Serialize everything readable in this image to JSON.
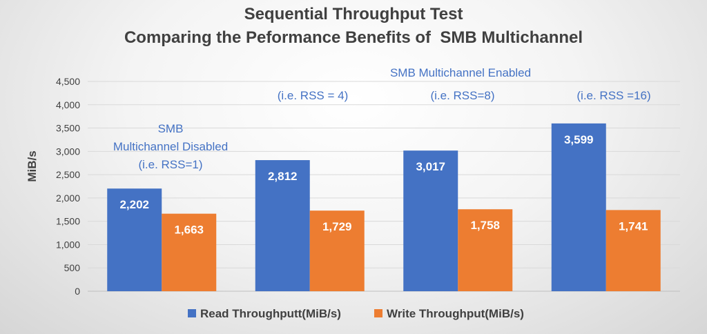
{
  "chart_data": {
    "type": "bar",
    "title": "Sequential Throughput Test",
    "subtitle": "Comparing the Peformance Benefits of  SMB Multichannel",
    "xlabel": "",
    "ylabel": "MiB/s",
    "ylim": [
      0,
      4500
    ],
    "yticks": [
      "0",
      "500",
      "1,000",
      "1,500",
      "2,000",
      "2,500",
      "3,000",
      "3,500",
      "4,000",
      "4,500"
    ],
    "categories": [
      "",
      "",
      "",
      ""
    ],
    "series": [
      {
        "name": "Read Throughputt(MiB/s)",
        "values": [
          2202,
          2812,
          3017,
          3599
        ],
        "labels": [
          "2,202",
          "2,812",
          "3,017",
          "3,599"
        ],
        "color": "#4472c4"
      },
      {
        "name": "Write Throughput(MiB/s)",
        "values": [
          1663,
          1729,
          1758,
          1741
        ],
        "labels": [
          "1,663",
          "1,729",
          "1,758",
          "1,741"
        ],
        "color": "#ed7d31"
      }
    ],
    "grid": true,
    "legend_position": "bottom",
    "annotations": {
      "disabled_lines": [
        "SMB",
        "Multichannel Disabled",
        "(i.e. RSS=1)"
      ],
      "enabled_header": "SMB Multichannel Enabled",
      "rss_labels": [
        "(i.e. RSS = 4)",
        "(i.e. RSS=8)",
        "(i.e. RSS =16)"
      ]
    }
  }
}
